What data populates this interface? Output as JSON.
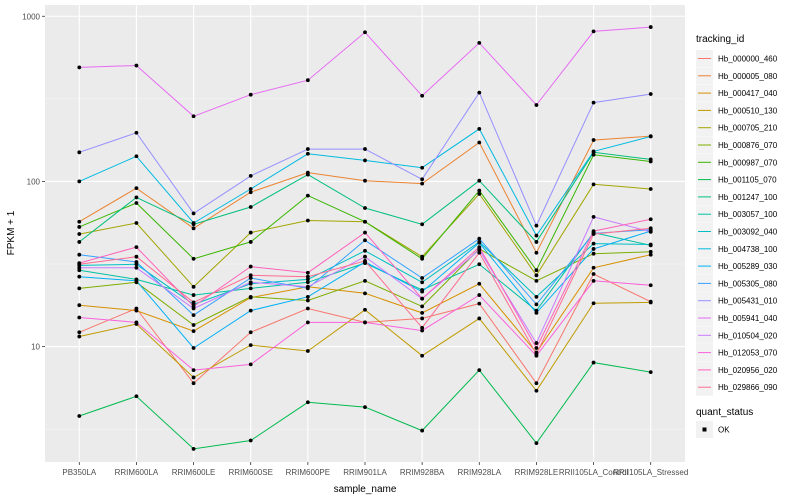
{
  "chart_data": {
    "type": "line",
    "title": "",
    "xlabel": "sample_name",
    "ylabel": "FPKM + 1",
    "yscale": "log10",
    "ylim": [
      2.0,
      1170
    ],
    "yticks": [
      10,
      100,
      1000
    ],
    "ytick_labels": [
      "10",
      "100",
      "1000"
    ],
    "grid": true,
    "legend_position": "right",
    "categories": [
      "PB350LA",
      "RRIM600LA",
      "RRIM600LE",
      "RRIM600SE",
      "RRIM600PE",
      "RRIM901LA",
      "RRIM928BA",
      "RRIM928LA",
      "RRIM928LE",
      "RRII105LA_Control",
      "RRII105LA_Stressed"
    ],
    "legend": {
      "color_title": "tracking_id",
      "shape_title": "quant_status",
      "shape_entries": [
        "OK"
      ]
    },
    "series": [
      {
        "name": "Hb_000000_460",
        "color": "#F8766D",
        "values": [
          12.2,
          17.0,
          6.0,
          12.2,
          17.0,
          14.0,
          14.8,
          18.2,
          6.0,
          27.5,
          18.7
        ]
      },
      {
        "name": "Hb_000005_080",
        "color": "#EA8331",
        "values": [
          57.0,
          91.0,
          52.0,
          86.0,
          113.0,
          101.0,
          97.0,
          172.0,
          37.0,
          178.0,
          188.0
        ]
      },
      {
        "name": "Hb_000417_040",
        "color": "#D89000",
        "values": [
          17.8,
          16.5,
          12.4,
          19.8,
          23.0,
          21.0,
          16.0,
          24.0,
          9.2,
          30.0,
          36.0
        ]
      },
      {
        "name": "Hb_000510_130",
        "color": "#C09B00",
        "values": [
          11.5,
          13.7,
          6.5,
          10.2,
          9.4,
          16.7,
          8.8,
          14.8,
          5.4,
          18.3,
          18.5
        ]
      },
      {
        "name": "Hb_000705_210",
        "color": "#A3A500",
        "values": [
          48.0,
          56.0,
          23.0,
          49.0,
          58.0,
          57.0,
          35.0,
          84.0,
          27.0,
          96.0,
          90.0
        ]
      },
      {
        "name": "Hb_000876_070",
        "color": "#7CAE00",
        "values": [
          22.5,
          24.5,
          13.5,
          20.0,
          19.0,
          25.0,
          17.5,
          39.0,
          25.0,
          36.5,
          37.5
        ]
      },
      {
        "name": "Hb_000987_070",
        "color": "#39B600",
        "values": [
          53.0,
          74.0,
          34.0,
          43.0,
          82.0,
          57.0,
          34.0,
          88.0,
          29.0,
          145.0,
          132.0
        ]
      },
      {
        "name": "Hb_001105_070",
        "color": "#00BB4E",
        "values": [
          3.8,
          5.0,
          2.4,
          2.7,
          4.6,
          4.3,
          3.1,
          7.2,
          2.6,
          8.0,
          7.0
        ]
      },
      {
        "name": "Hb_001247_100",
        "color": "#00BF7D",
        "values": [
          43.0,
          80.0,
          55.0,
          70.0,
          110.0,
          69.0,
          55.0,
          101.0,
          43.0,
          150.0,
          136.0
        ]
      },
      {
        "name": "Hb_003057_100",
        "color": "#00C1A3",
        "values": [
          29.0,
          25.5,
          20.5,
          22.5,
          24.5,
          32.0,
          22.0,
          31.5,
          16.5,
          49.0,
          41.0
        ]
      },
      {
        "name": "Hb_003092_040",
        "color": "#00BFC4",
        "values": [
          31.0,
          31.5,
          18.0,
          24.0,
          25.5,
          38.0,
          24.5,
          43.0,
          20.0,
          42.0,
          41.5
        ]
      },
      {
        "name": "Hb_004738_100",
        "color": "#00BAE0",
        "values": [
          100.0,
          142.0,
          56.0,
          90.0,
          147.0,
          134.0,
          121.0,
          208.0,
          47.0,
          152.0,
          187.0
        ]
      },
      {
        "name": "Hb_005289_030",
        "color": "#00B0F6",
        "values": [
          26.5,
          25.0,
          9.8,
          16.5,
          20.0,
          32.5,
          21.5,
          42.5,
          16.0,
          39.0,
          50.0
        ]
      },
      {
        "name": "Hb_005305_080",
        "color": "#35A2FF",
        "values": [
          36.0,
          32.5,
          15.5,
          26.0,
          22.5,
          44.0,
          26.0,
          45.0,
          18.0,
          48.5,
          51.0
        ]
      },
      {
        "name": "Hb_005431_010",
        "color": "#9590FF",
        "values": [
          150.0,
          197.0,
          64.0,
          108.0,
          157.0,
          157.0,
          103.0,
          345.0,
          54.0,
          300.0,
          338.0
        ]
      },
      {
        "name": "Hb_005941_040",
        "color": "#E76BF3",
        "values": [
          490.0,
          503.0,
          248.0,
          335.0,
          410.0,
          800.0,
          330.0,
          690.0,
          290.0,
          810.0,
          860.0
        ]
      },
      {
        "name": "Hb_010504_020",
        "color": "#C77CFF",
        "values": [
          30.0,
          30.0,
          17.0,
          24.5,
          23.0,
          35.0,
          19.5,
          38.5,
          10.5,
          61.0,
          49.5
        ]
      },
      {
        "name": "Hb_012053_070",
        "color": "#FA62DB",
        "values": [
          15.0,
          14.0,
          7.2,
          7.8,
          14.0,
          14.0,
          12.5,
          20.5,
          8.8,
          25.0,
          23.5
        ]
      },
      {
        "name": "Hb_020956_020",
        "color": "#FF62BC",
        "values": [
          32.0,
          40.0,
          17.5,
          30.5,
          28.0,
          49.0,
          19.5,
          40.0,
          9.8,
          50.0,
          59.0
        ]
      },
      {
        "name": "Hb_029866_090",
        "color": "#FF6C91",
        "values": [
          31.5,
          35.0,
          18.5,
          27.0,
          26.5,
          33.0,
          13.0,
          37.0,
          9.0,
          48.0,
          52.0
        ]
      }
    ]
  }
}
